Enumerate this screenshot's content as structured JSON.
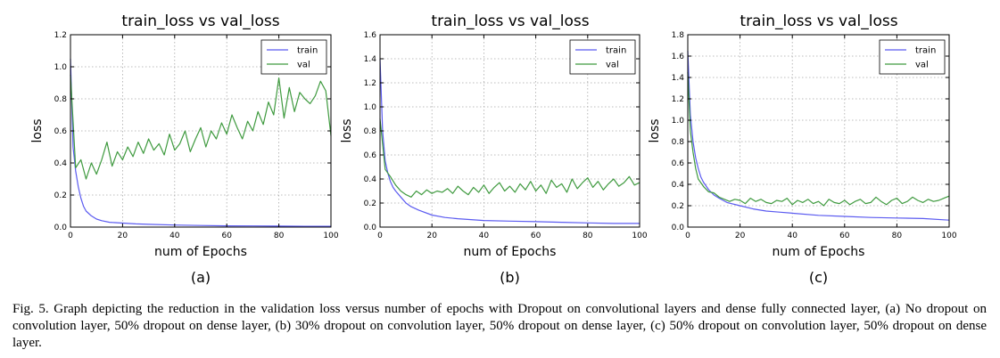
{
  "caption": "Fig. 5. Graph depicting the reduction in the validation loss versus number of epochs with Dropout on convolutional layers and dense fully connected layer, (a) No dropout on convolution layer, 50% dropout on dense layer, (b) 30% dropout on convolution layer, 50% dropout on dense layer, (c) 50% dropout on convolution layer, 50% dropout on dense layer.",
  "colors": {
    "train": "#5b5bf0",
    "val": "#3f9a3f",
    "grid": "#a8a8a8"
  },
  "chart_data": [
    {
      "type": "line",
      "panel_label": "(a)",
      "title": "train_loss  vs val_loss",
      "xlabel": "num of Epochs",
      "ylabel": "loss",
      "xlim": [
        0,
        100
      ],
      "ylim": [
        0,
        1.2
      ],
      "xticks": [
        0,
        20,
        40,
        60,
        80,
        100
      ],
      "yticks": [
        0.0,
        0.2,
        0.4,
        0.6,
        0.8,
        1.0,
        1.2
      ],
      "grid": true,
      "legend_position": "top-right",
      "series": [
        {
          "name": "train",
          "x": [
            0,
            1,
            2,
            3,
            4,
            5,
            6,
            8,
            10,
            12,
            15,
            20,
            25,
            30,
            40,
            50,
            60,
            70,
            80,
            90,
            100
          ],
          "values": [
            1.05,
            0.5,
            0.35,
            0.25,
            0.18,
            0.13,
            0.1,
            0.07,
            0.05,
            0.04,
            0.03,
            0.025,
            0.02,
            0.017,
            0.013,
            0.01,
            0.008,
            0.007,
            0.006,
            0.005,
            0.005
          ]
        },
        {
          "name": "val",
          "x": [
            0,
            2,
            4,
            6,
            8,
            10,
            12,
            14,
            16,
            18,
            20,
            22,
            24,
            26,
            28,
            30,
            32,
            34,
            36,
            38,
            40,
            42,
            44,
            46,
            48,
            50,
            52,
            54,
            56,
            58,
            60,
            62,
            64,
            66,
            68,
            70,
            72,
            74,
            76,
            78,
            80,
            82,
            84,
            86,
            88,
            90,
            92,
            94,
            96,
            98,
            100
          ],
          "values": [
            0.95,
            0.37,
            0.42,
            0.3,
            0.4,
            0.33,
            0.42,
            0.53,
            0.38,
            0.47,
            0.42,
            0.5,
            0.44,
            0.53,
            0.46,
            0.55,
            0.48,
            0.52,
            0.45,
            0.58,
            0.48,
            0.52,
            0.6,
            0.47,
            0.55,
            0.62,
            0.5,
            0.6,
            0.55,
            0.65,
            0.58,
            0.7,
            0.62,
            0.55,
            0.66,
            0.6,
            0.72,
            0.64,
            0.78,
            0.7,
            0.93,
            0.68,
            0.87,
            0.72,
            0.84,
            0.8,
            0.77,
            0.82,
            0.91,
            0.85,
            0.57
          ]
        }
      ]
    },
    {
      "type": "line",
      "panel_label": "(b)",
      "title": "train_loss  vs val_loss",
      "xlabel": "num of Epochs",
      "ylabel": "loss",
      "xlim": [
        0,
        100
      ],
      "ylim": [
        0,
        1.6
      ],
      "xticks": [
        0,
        20,
        40,
        60,
        80,
        100
      ],
      "yticks": [
        0.0,
        0.2,
        0.4,
        0.6,
        0.8,
        1.0,
        1.2,
        1.4,
        1.6
      ],
      "grid": true,
      "legend_position": "top-right",
      "series": [
        {
          "name": "train",
          "x": [
            0,
            1,
            2,
            3,
            4,
            5,
            6,
            8,
            10,
            12,
            15,
            20,
            25,
            30,
            40,
            50,
            60,
            70,
            80,
            90,
            100
          ],
          "values": [
            1.4,
            0.8,
            0.55,
            0.45,
            0.38,
            0.33,
            0.3,
            0.25,
            0.2,
            0.17,
            0.14,
            0.1,
            0.08,
            0.07,
            0.055,
            0.05,
            0.045,
            0.04,
            0.035,
            0.03,
            0.03
          ]
        },
        {
          "name": "val",
          "x": [
            0,
            2,
            4,
            6,
            8,
            10,
            12,
            14,
            16,
            18,
            20,
            22,
            24,
            26,
            28,
            30,
            32,
            34,
            36,
            38,
            40,
            42,
            44,
            46,
            48,
            50,
            52,
            54,
            56,
            58,
            60,
            62,
            64,
            66,
            68,
            70,
            72,
            74,
            76,
            78,
            80,
            82,
            84,
            86,
            88,
            90,
            92,
            94,
            96,
            98,
            100
          ],
          "values": [
            0.9,
            0.48,
            0.42,
            0.35,
            0.3,
            0.27,
            0.25,
            0.3,
            0.27,
            0.31,
            0.28,
            0.3,
            0.29,
            0.32,
            0.28,
            0.34,
            0.3,
            0.27,
            0.33,
            0.29,
            0.35,
            0.28,
            0.33,
            0.37,
            0.3,
            0.34,
            0.29,
            0.36,
            0.31,
            0.38,
            0.3,
            0.35,
            0.28,
            0.39,
            0.33,
            0.36,
            0.29,
            0.4,
            0.32,
            0.37,
            0.41,
            0.33,
            0.38,
            0.31,
            0.36,
            0.4,
            0.34,
            0.37,
            0.42,
            0.35,
            0.37
          ]
        }
      ]
    },
    {
      "type": "line",
      "panel_label": "(c)",
      "title": "train_loss  vs val_loss",
      "xlabel": "num of Epochs",
      "ylabel": "loss",
      "xlim": [
        0,
        100
      ],
      "ylim": [
        0,
        1.8
      ],
      "xticks": [
        0,
        20,
        40,
        60,
        80,
        100
      ],
      "yticks": [
        0.0,
        0.2,
        0.4,
        0.6,
        0.8,
        1.0,
        1.2,
        1.4,
        1.6,
        1.8
      ],
      "grid": true,
      "legend_position": "top-right",
      "series": [
        {
          "name": "train",
          "x": [
            0,
            1,
            2,
            3,
            4,
            5,
            6,
            8,
            10,
            12,
            15,
            20,
            25,
            30,
            35,
            40,
            50,
            60,
            70,
            80,
            90,
            100
          ],
          "values": [
            1.65,
            1.05,
            0.8,
            0.65,
            0.55,
            0.47,
            0.42,
            0.35,
            0.3,
            0.27,
            0.23,
            0.2,
            0.17,
            0.15,
            0.14,
            0.13,
            0.11,
            0.1,
            0.09,
            0.085,
            0.08,
            0.065
          ]
        },
        {
          "name": "val",
          "x": [
            0,
            1,
            2,
            3,
            4,
            6,
            8,
            10,
            12,
            14,
            16,
            18,
            20,
            22,
            24,
            26,
            28,
            30,
            32,
            34,
            36,
            38,
            40,
            42,
            44,
            46,
            48,
            50,
            52,
            54,
            56,
            58,
            60,
            62,
            64,
            66,
            68,
            70,
            72,
            74,
            76,
            78,
            80,
            82,
            84,
            86,
            88,
            90,
            92,
            94,
            96,
            98,
            100
          ],
          "values": [
            1.45,
            0.9,
            0.7,
            0.55,
            0.45,
            0.38,
            0.33,
            0.32,
            0.28,
            0.26,
            0.24,
            0.26,
            0.25,
            0.22,
            0.27,
            0.24,
            0.26,
            0.23,
            0.22,
            0.25,
            0.24,
            0.27,
            0.21,
            0.25,
            0.23,
            0.26,
            0.22,
            0.24,
            0.2,
            0.26,
            0.23,
            0.22,
            0.25,
            0.21,
            0.24,
            0.26,
            0.22,
            0.23,
            0.28,
            0.24,
            0.21,
            0.25,
            0.27,
            0.22,
            0.24,
            0.28,
            0.25,
            0.23,
            0.26,
            0.24,
            0.25,
            0.27,
            0.29
          ]
        }
      ]
    }
  ]
}
